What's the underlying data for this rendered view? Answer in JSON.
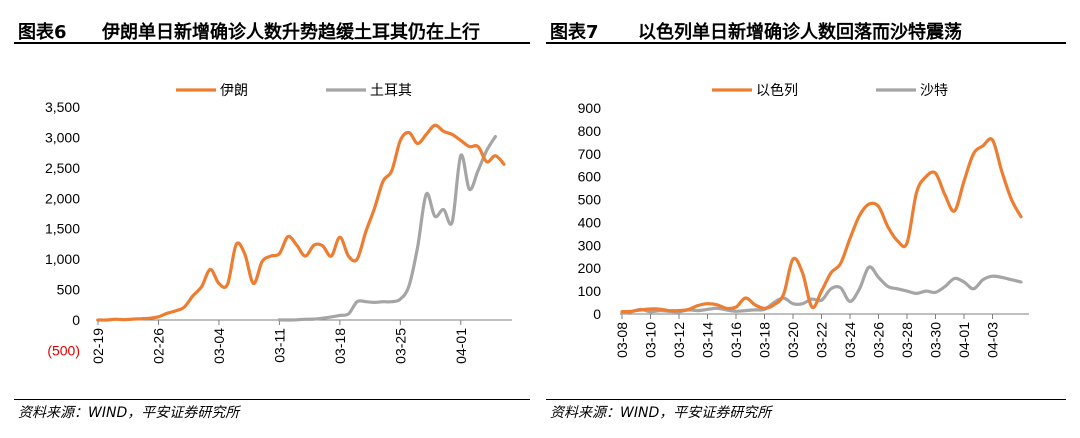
{
  "charts": [
    {
      "fig_no": "图表6",
      "title": "伊朗单日新增确诊人数升势趋缓土耳其仍在上行",
      "source": "资料来源：WIND，平安证券研究所"
    },
    {
      "fig_no": "图表7",
      "title": "以色列单日新增确诊人数回落而沙特震荡",
      "source": "资料来源：WIND，平安证券研究所"
    }
  ],
  "colors": {
    "orange": "#ED7D31",
    "gray": "#A5A5A5"
  },
  "chart_data": [
    {
      "type": "line",
      "ylim": [
        -500,
        3500
      ],
      "yticks": [
        {
          "v": 3500,
          "label": "3,500"
        },
        {
          "v": 3000,
          "label": "3,000"
        },
        {
          "v": 2500,
          "label": "2,500"
        },
        {
          "v": 2000,
          "label": "2,000"
        },
        {
          "v": 1500,
          "label": "1,500"
        },
        {
          "v": 1000,
          "label": "1,000"
        },
        {
          "v": 500,
          "label": "500"
        },
        {
          "v": 0,
          "label": "0"
        },
        {
          "v": -500,
          "label": "(500)"
        }
      ],
      "xtick_labels": [
        "02-19",
        "02-26",
        "03-04",
        "03-11",
        "03-18",
        "03-25",
        "04-01"
      ],
      "legend_position": "top",
      "series": [
        {
          "name": "伊朗",
          "color": "#ED7D31",
          "x": [
            0,
            1,
            2,
            3,
            4,
            5,
            6,
            7,
            8,
            9,
            10,
            11,
            12,
            13,
            14,
            15,
            16,
            17,
            18,
            19,
            20,
            21,
            22,
            23,
            24,
            25,
            26,
            27,
            28,
            29,
            30,
            31,
            32,
            33,
            34,
            35,
            36,
            37,
            38,
            39,
            40,
            41,
            42,
            43,
            44,
            45,
            46,
            47
          ],
          "values": [
            0,
            0,
            13,
            5,
            15,
            20,
            30,
            52,
            110,
            150,
            215,
            400,
            550,
            830,
            600,
            590,
            1240,
            1080,
            600,
            960,
            1050,
            1090,
            1370,
            1230,
            1050,
            1230,
            1220,
            1050,
            1360,
            1050,
            1000,
            1450,
            1830,
            2280,
            2450,
            2950,
            3080,
            2900,
            3050,
            3200,
            3100,
            3050,
            2950,
            2850,
            2850,
            2600,
            2700,
            2560
          ]
        },
        {
          "name": "土耳其",
          "color": "#A5A5A5",
          "x": [
            21,
            22,
            23,
            24,
            25,
            26,
            27,
            28,
            29,
            30,
            31,
            32,
            33,
            34,
            35,
            36,
            37,
            38,
            39,
            40,
            41,
            42,
            43,
            44,
            45,
            46
          ],
          "values": [
            1,
            0,
            3,
            11,
            15,
            30,
            51,
            76,
            101,
            300,
            300,
            290,
            300,
            300,
            343,
            561,
            1196,
            2069,
            1704,
            1815,
            1610,
            2704,
            2148,
            2456,
            2786,
            3013
          ]
        }
      ]
    },
    {
      "type": "line",
      "ylim": [
        0,
        900
      ],
      "yticks": [
        {
          "v": 900,
          "label": "900"
        },
        {
          "v": 800,
          "label": "800"
        },
        {
          "v": 700,
          "label": "700"
        },
        {
          "v": 600,
          "label": "600"
        },
        {
          "v": 500,
          "label": "500"
        },
        {
          "v": 400,
          "label": "400"
        },
        {
          "v": 300,
          "label": "300"
        },
        {
          "v": 200,
          "label": "200"
        },
        {
          "v": 100,
          "label": "100"
        },
        {
          "v": 0,
          "label": "0"
        }
      ],
      "xtick_labels": [
        "03-08",
        "03-10",
        "03-12",
        "03-14",
        "03-16",
        "03-18",
        "03-20",
        "03-22",
        "03-24",
        "03-26",
        "03-28",
        "03-30",
        "04-01",
        "04-03"
      ],
      "legend_position": "top",
      "series": [
        {
          "name": "以色列",
          "color": "#ED7D31",
          "x": [
            0,
            1,
            2,
            3,
            4,
            5,
            6,
            7,
            8,
            9,
            10,
            11,
            12,
            13,
            14,
            15,
            16,
            17,
            18,
            19,
            20,
            21,
            22,
            23,
            24,
            25,
            26,
            27,
            28,
            29,
            30,
            31,
            32,
            33,
            34,
            35,
            36,
            37,
            38,
            39,
            40,
            41,
            42
          ],
          "values": [
            10,
            12,
            18,
            22,
            21,
            15,
            15,
            20,
            37,
            45,
            40,
            25,
            30,
            70,
            40,
            25,
            40,
            85,
            240,
            180,
            30,
            100,
            180,
            220,
            330,
            430,
            480,
            470,
            380,
            320,
            310,
            530,
            600,
            615,
            520,
            450,
            580,
            700,
            735,
            760,
            620,
            500,
            425
          ]
        },
        {
          "name": "沙特",
          "color": "#A5A5A5",
          "x": [
            0,
            1,
            2,
            3,
            4,
            5,
            6,
            7,
            8,
            9,
            10,
            11,
            12,
            13,
            14,
            15,
            16,
            17,
            18,
            19,
            20,
            21,
            22,
            23,
            24,
            25,
            26,
            27,
            28,
            29,
            30,
            31,
            32,
            33,
            34,
            35,
            36,
            37,
            38,
            39,
            40,
            41,
            42
          ],
          "values": [
            5,
            10,
            20,
            10,
            15,
            12,
            10,
            18,
            15,
            20,
            25,
            18,
            12,
            15,
            18,
            20,
            50,
            70,
            45,
            45,
            65,
            60,
            110,
            115,
            55,
            110,
            205,
            160,
            120,
            110,
            100,
            90,
            100,
            95,
            120,
            155,
            140,
            110,
            150,
            165,
            160,
            150,
            140
          ]
        }
      ]
    }
  ]
}
